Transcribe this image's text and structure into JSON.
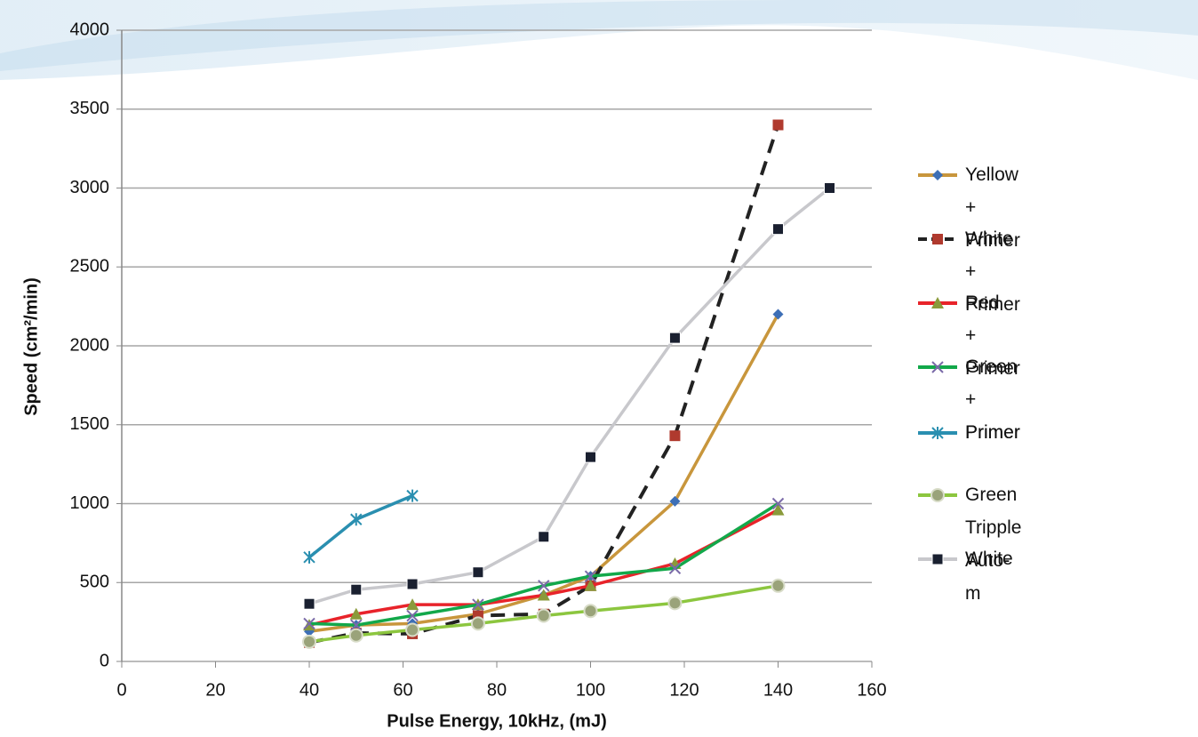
{
  "chart_data": {
    "type": "line",
    "xlabel": "Pulse Energy, 10kHz, (mJ)",
    "ylabel": "Speed (cm²/min)",
    "xlim": [
      0,
      160
    ],
    "xticks": [
      0,
      20,
      40,
      60,
      80,
      100,
      120,
      140,
      160
    ],
    "ylim": [
      0,
      4000
    ],
    "yticks": [
      0,
      500,
      1000,
      1500,
      2000,
      2500,
      3000,
      3500,
      4000
    ],
    "grid": true,
    "legend": "right",
    "series": [
      {
        "name": "Yellow\n+ Primer",
        "color": "#c8963c",
        "marker": "diamond",
        "marker_color": "#3d6fb6",
        "dashed": false,
        "x": [
          40,
          50,
          62,
          76,
          90,
          100,
          118,
          140
        ],
        "values": [
          190,
          230,
          240,
          300,
          420,
          540,
          1015,
          2200
        ]
      },
      {
        "name": "White\n+ Primer",
        "color": "#222222",
        "marker": "square",
        "marker_color": "#b03a2e",
        "dashed": true,
        "x": [
          40,
          50,
          62,
          76,
          90,
          100,
          118,
          140
        ],
        "values": [
          120,
          180,
          175,
          290,
          300,
          480,
          1430,
          3400
        ]
      },
      {
        "name": "Red\n+ Primer",
        "color": "#e8232a",
        "marker": "triangle",
        "marker_color": "#8a9a3a",
        "dashed": false,
        "x": [
          40,
          50,
          62,
          76,
          90,
          100,
          118,
          140
        ],
        "values": [
          230,
          300,
          360,
          360,
          420,
          480,
          620,
          960
        ]
      },
      {
        "name": "Green\n+ Primer",
        "color": "#12a84a",
        "marker": "x",
        "marker_color": "#7a6aa8",
        "dashed": false,
        "x": [
          40,
          50,
          62,
          76,
          90,
          100,
          118,
          140
        ],
        "values": [
          240,
          230,
          290,
          360,
          480,
          540,
          590,
          1000
        ]
      },
      {
        "name": "Primer",
        "color": "#2a8fb0",
        "marker": "asterisk",
        "marker_color": "#2a8fb0",
        "dashed": false,
        "x": [
          40,
          50,
          62
        ],
        "values": [
          660,
          900,
          1050
        ]
      },
      {
        "name": "Green Tripple Auto-m",
        "color": "#8cc63f",
        "marker": "circle",
        "marker_color": "#9aa37a",
        "dashed": false,
        "x": [
          40,
          50,
          62,
          76,
          90,
          100,
          118,
          140
        ],
        "values": [
          125,
          165,
          200,
          240,
          290,
          320,
          370,
          480
        ]
      },
      {
        "name": "White",
        "color": "#c8c8cc",
        "marker": "square",
        "marker_color": "#1a2030",
        "dashed": false,
        "x": [
          40,
          50,
          62,
          76,
          90,
          100,
          118,
          140,
          151
        ],
        "values": [
          365,
          455,
          490,
          565,
          790,
          1295,
          2050,
          2740,
          3000
        ]
      }
    ]
  }
}
